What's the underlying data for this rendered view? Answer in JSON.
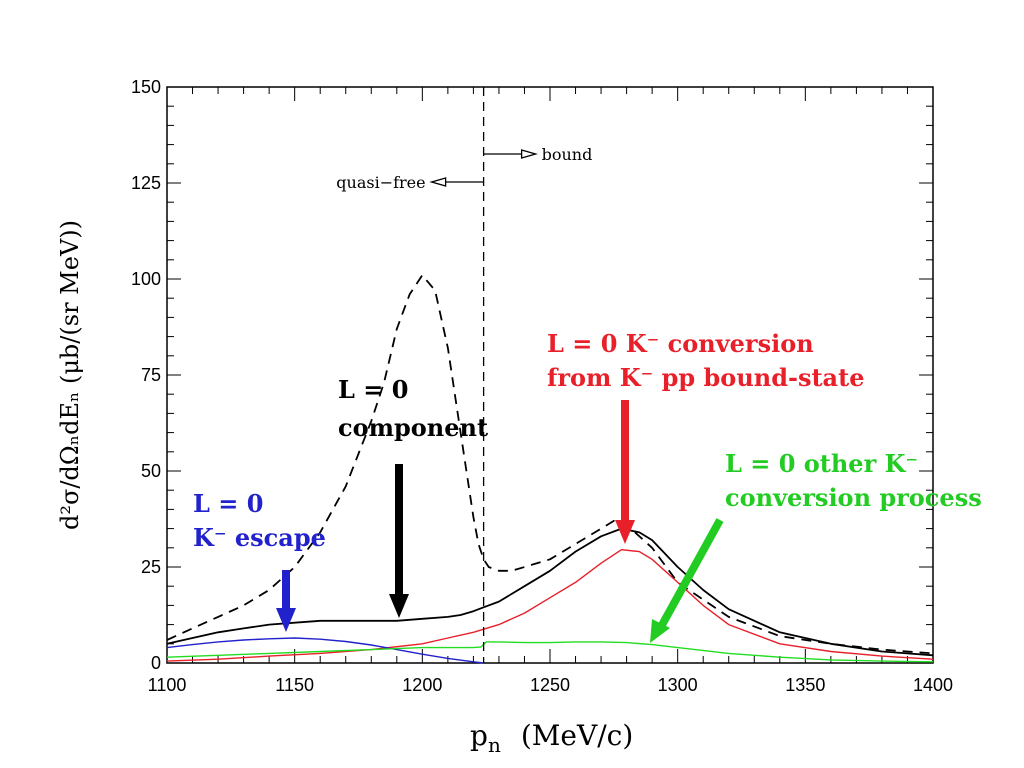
{
  "chart_data": {
    "type": "line",
    "xlabel_main": "p",
    "xlabel_sub": "n",
    "xlabel_units": "(MeV/c)",
    "ylabel": "d²σ/dΩₙdEₙ (μb/(sr MeV))",
    "xlim": [
      1100,
      1400
    ],
    "ylim": [
      0,
      150
    ],
    "x_ticks": [
      "1100",
      "1150",
      "1200",
      "1250",
      "1300",
      "1350",
      "1400"
    ],
    "y_ticks": [
      "0",
      "25",
      "50",
      "75",
      "100",
      "125",
      "150"
    ],
    "threshold_x": 1224,
    "region_labels": {
      "left": "quasi−free",
      "right": "bound"
    },
    "series": [
      {
        "key": "dashed",
        "color": "#000000",
        "style": "dashed",
        "x": [
          1100,
          1110,
          1120,
          1130,
          1140,
          1150,
          1160,
          1170,
          1180,
          1185,
          1190,
          1195,
          1200,
          1205,
          1210,
          1215,
          1220,
          1222,
          1224,
          1226,
          1230,
          1235,
          1240,
          1250,
          1260,
          1270,
          1275,
          1280,
          1290,
          1300,
          1320,
          1340,
          1360,
          1380,
          1400
        ],
        "y": [
          6,
          9,
          12,
          15,
          19,
          25,
          34,
          46,
          63,
          73,
          87,
          96,
          101,
          97,
          82,
          60,
          38,
          31,
          27,
          25,
          24,
          24,
          25,
          27,
          31,
          35,
          37,
          36,
          30,
          21,
          12,
          7,
          5,
          3.5,
          2.5
        ]
      },
      {
        "key": "solid",
        "color": "#000000",
        "style": "solid",
        "x": [
          1100,
          1110,
          1120,
          1130,
          1140,
          1150,
          1160,
          1170,
          1180,
          1190,
          1200,
          1210,
          1215,
          1220,
          1224,
          1230,
          1240,
          1250,
          1260,
          1270,
          1278,
          1285,
          1290,
          1300,
          1310,
          1320,
          1340,
          1360,
          1380,
          1400
        ],
        "y": [
          5,
          6.5,
          8,
          9,
          10,
          10.5,
          11,
          11,
          11,
          11,
          11.5,
          12,
          12.5,
          13.5,
          14.5,
          16,
          20,
          24,
          29,
          33,
          35,
          34,
          32,
          25,
          19,
          14,
          8,
          5,
          3,
          2
        ]
      },
      {
        "key": "red",
        "color": "#e8202a",
        "style": "solid",
        "x": [
          1100,
          1120,
          1140,
          1160,
          1180,
          1200,
          1210,
          1220,
          1230,
          1240,
          1250,
          1260,
          1270,
          1278,
          1285,
          1290,
          1300,
          1310,
          1320,
          1340,
          1360,
          1380,
          1400
        ],
        "y": [
          0.5,
          1,
          1.8,
          2.5,
          3.5,
          5,
          6.5,
          8,
          10,
          13,
          17,
          21,
          26,
          29.5,
          29,
          27,
          21,
          15,
          10,
          5,
          3,
          1.8,
          1
        ]
      },
      {
        "key": "blue",
        "color": "#2222cc",
        "style": "solid",
        "x": [
          1100,
          1110,
          1120,
          1130,
          1140,
          1150,
          1160,
          1170,
          1180,
          1190,
          1200,
          1210,
          1220,
          1224
        ],
        "y": [
          4,
          4.8,
          5.5,
          6,
          6.3,
          6.5,
          6.2,
          5.6,
          4.7,
          3.5,
          2.3,
          1.2,
          0.3,
          0
        ]
      },
      {
        "key": "green",
        "color": "#22dd22",
        "style": "solid",
        "x": [
          1100,
          1120,
          1140,
          1160,
          1180,
          1200,
          1210,
          1220,
          1223,
          1225,
          1230,
          1240,
          1250,
          1260,
          1270,
          1280,
          1290,
          1300,
          1320,
          1340,
          1360,
          1380,
          1400
        ],
        "y": [
          1.5,
          2,
          2.5,
          3,
          3.5,
          4,
          4,
          4,
          4.2,
          5.5,
          5.5,
          5.3,
          5.3,
          5.5,
          5.5,
          5.3,
          4.8,
          4,
          2.5,
          1.5,
          0.8,
          0.5,
          0.3
        ]
      }
    ],
    "annotations": [
      {
        "key": "blue-label",
        "color": "#2222cc",
        "lines": [
          "L = 0",
          "K⁻ escape"
        ]
      },
      {
        "key": "black-label",
        "color": "#000000",
        "lines": [
          "L = 0",
          "component"
        ]
      },
      {
        "key": "red-label",
        "color": "#e8202a",
        "lines": [
          "L = 0 K⁻ conversion",
          "from K⁻ pp bound-state"
        ]
      },
      {
        "key": "green-label",
        "color": "#22cc22",
        "lines": [
          "L = 0 other K⁻",
          "conversion process"
        ]
      }
    ]
  }
}
